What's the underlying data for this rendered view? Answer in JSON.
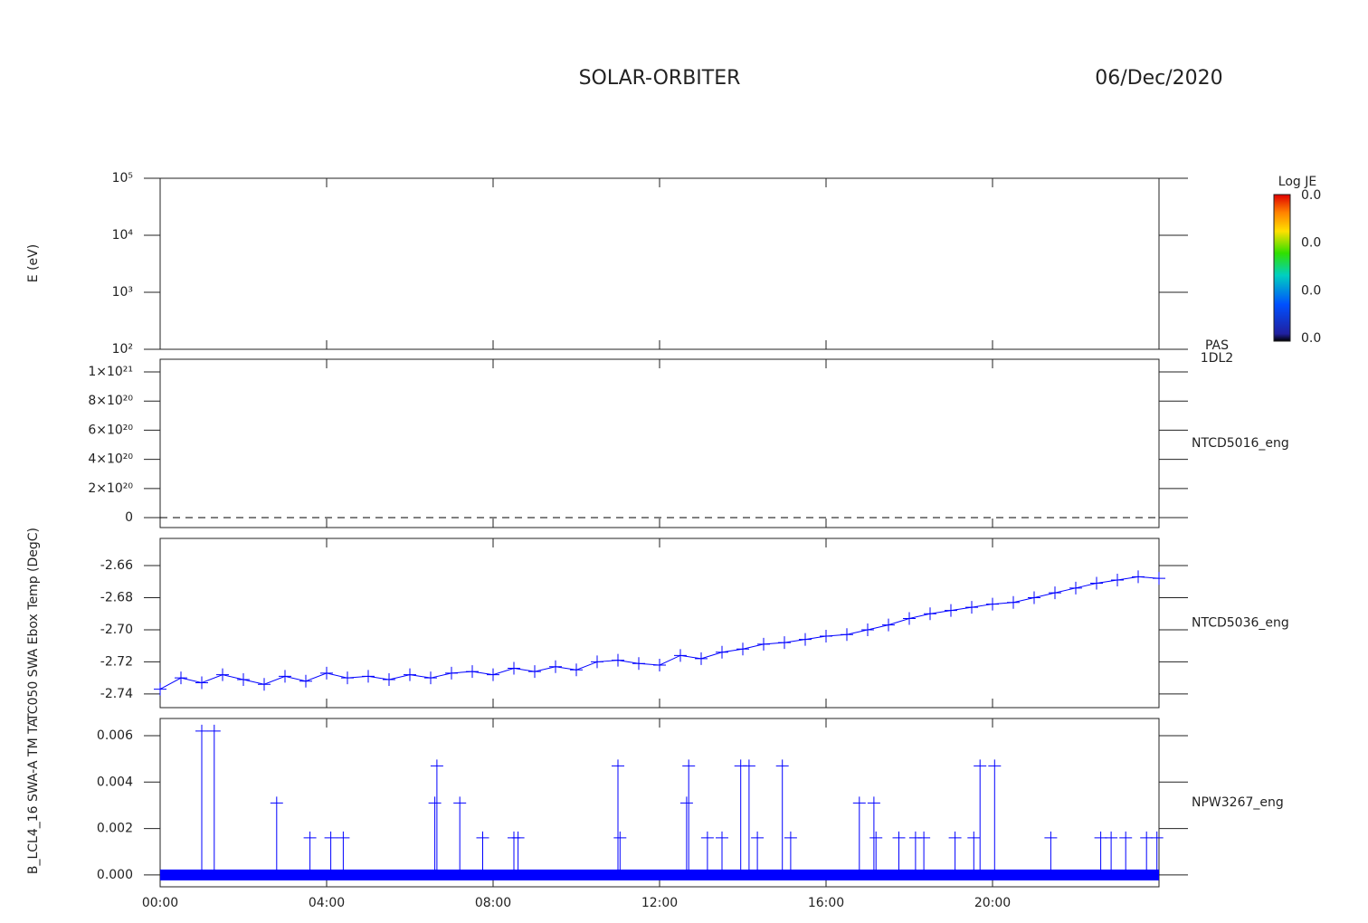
{
  "header": {
    "title": "SOLAR-ORBITER",
    "date": "06/Dec/2020"
  },
  "chart_data": [
    {
      "type": "spectrogram",
      "ylabel": "E (eV)",
      "ylog": true,
      "ylim": [
        100,
        100000
      ],
      "yticks": [
        {
          "value": 100,
          "label": "10²"
        },
        {
          "value": 1000,
          "label": "10³"
        },
        {
          "value": 10000,
          "label": "10⁴"
        },
        {
          "value": 100000,
          "label": "10⁵"
        }
      ],
      "side_label": [
        "PAS",
        "1DL2"
      ],
      "colorbar": {
        "label": "Log JE",
        "ticks": [
          "0.0",
          "0.0",
          "0.0",
          "0.0"
        ]
      }
    },
    {
      "type": "line",
      "side_label": [
        "NTCD5016_eng"
      ],
      "color": "#000000",
      "linestyle": "dashed",
      "ylim": [
        -6.8e+19,
        1.087e+21
      ],
      "yticks": [
        0,
        {
          "value": 2e+20,
          "label": "2×10²⁰"
        },
        {
          "value": 4e+20,
          "label": "4×10²⁰"
        },
        {
          "value": 6e+20,
          "label": "6×10²⁰"
        },
        {
          "value": 8e+20,
          "label": "8×10²⁰"
        },
        {
          "value": 1e+21,
          "label": "1×10²¹"
        }
      ],
      "x": [
        0,
        24
      ],
      "values": [
        0,
        0
      ]
    },
    {
      "type": "scatter",
      "ylabel": "TC050 SWA Ebox Temp (DegC)",
      "side_label": [
        "NTCD5036_eng"
      ],
      "color": "#0000ff",
      "ylim": [
        -2.7485,
        -2.6431
      ],
      "yticks": [
        -2.74,
        -2.72,
        {
          "value": -2.7,
          "label": "-2.70"
        },
        -2.68,
        -2.66
      ],
      "x": [
        0,
        0.5,
        1,
        1.5,
        2,
        2.5,
        3,
        3.5,
        4,
        4.5,
        5,
        5.5,
        6,
        6.5,
        7,
        7.5,
        8,
        8.5,
        9,
        9.5,
        10,
        10.5,
        11,
        11.5,
        12,
        12.5,
        13,
        13.5,
        14,
        14.5,
        15,
        15.5,
        16,
        16.5,
        17,
        17.5,
        18,
        18.5,
        19,
        19.5,
        20,
        20.5,
        21,
        21.5,
        22,
        22.5,
        23,
        23.5,
        24
      ],
      "values": [
        -2.737,
        -2.73,
        -2.733,
        -2.728,
        -2.731,
        -2.734,
        -2.729,
        -2.732,
        -2.727,
        -2.73,
        -2.729,
        -2.731,
        -2.728,
        -2.73,
        -2.727,
        -2.726,
        -2.728,
        -2.724,
        -2.726,
        -2.723,
        -2.725,
        -2.72,
        -2.719,
        -2.721,
        -2.722,
        -2.716,
        -2.718,
        -2.714,
        -2.712,
        -2.709,
        -2.708,
        -2.706,
        -2.704,
        -2.703,
        -2.7,
        -2.697,
        -2.693,
        -2.69,
        -2.688,
        -2.686,
        -2.684,
        -2.683,
        -2.68,
        -2.677,
        -2.674,
        -2.671,
        -2.669,
        -2.667,
        -2.668
      ]
    },
    {
      "type": "spike",
      "ylabel": "B_LCL4_16 SWA-A TM TA",
      "side_label": [
        "NPW3267_eng"
      ],
      "color": "#0000ff",
      "ylim": [
        -0.00051,
        0.00674
      ],
      "yticks": [
        {
          "value": 0,
          "label": "0.000"
        },
        {
          "value": 0.002,
          "label": "0.002"
        },
        {
          "value": 0.004,
          "label": "0.004"
        },
        {
          "value": 0.006,
          "label": "0.006"
        }
      ],
      "xlim": [
        0,
        24
      ],
      "xticks": [
        {
          "value": 0,
          "label": "00:00"
        },
        {
          "value": 4,
          "label": "04:00"
        },
        {
          "value": 8,
          "label": "08:00"
        },
        {
          "value": 12,
          "label": "12:00"
        },
        {
          "value": 16,
          "label": "16:00"
        },
        {
          "value": 20,
          "label": "20:00"
        }
      ],
      "x": [
        1.0,
        1.3,
        2.8,
        3.6,
        4.1,
        4.4,
        6.6,
        6.65,
        7.2,
        7.75,
        8.5,
        8.6,
        11.0,
        11.05,
        12.65,
        12.7,
        13.15,
        13.5,
        13.95,
        14.15,
        14.35,
        14.95,
        15.15,
        16.8,
        17.15,
        17.2,
        17.75,
        18.15,
        18.35,
        19.1,
        19.55,
        19.7,
        20.05,
        21.4,
        22.6,
        22.85,
        23.2,
        23.7,
        23.95
      ],
      "values": [
        0.0062,
        0.0062,
        0.0031,
        0.0016,
        0.0016,
        0.0016,
        0.0031,
        0.0047,
        0.0031,
        0.0016,
        0.0016,
        0.0016,
        0.0047,
        0.0016,
        0.0031,
        0.0047,
        0.0016,
        0.0016,
        0.0047,
        0.0047,
        0.0016,
        0.0047,
        0.0016,
        0.0031,
        0.0031,
        0.0016,
        0.0016,
        0.0016,
        0.0016,
        0.0016,
        0.0016,
        0.0047,
        0.0047,
        0.0016,
        0.0016,
        0.0016,
        0.0016,
        0.0016,
        0.0016
      ]
    }
  ]
}
